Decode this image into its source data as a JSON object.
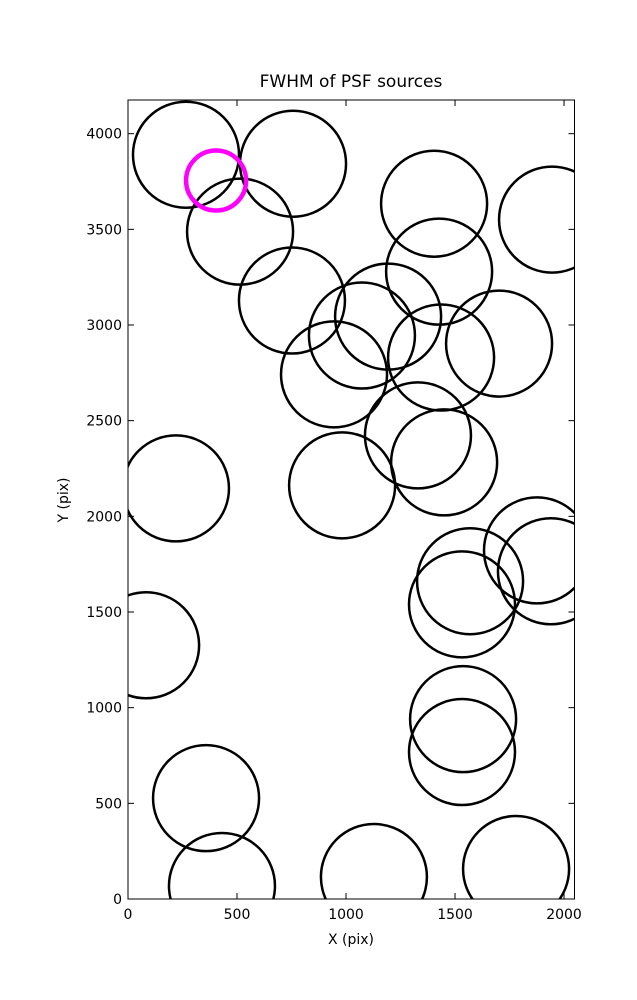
{
  "chart_data": {
    "type": "scatter",
    "title": "FWHM of PSF sources",
    "x_label": "X (pix)",
    "y_label": "Y (pix)",
    "xlim": [
      0,
      2048
    ],
    "ylim": [
      0,
      4176
    ],
    "xticks": [
      0,
      500,
      1000,
      1500,
      2000
    ],
    "yticks": [
      0,
      500,
      1000,
      1500,
      2000,
      2500,
      3000,
      3500,
      4000
    ],
    "series": [
      {
        "color": "#000000",
        "x": [
          266,
          757,
          514,
          1404,
          1945,
          1427,
          752,
          1193,
          1073,
          1436,
          1702,
          945,
          1330,
          1450,
          982,
          220,
          1876,
          1940,
          1569,
          1532,
          83,
          1537,
          1532,
          358,
          431,
          1128,
          1780
        ],
        "y": [
          3890,
          3843,
          3488,
          3634,
          3551,
          3279,
          3128,
          3044,
          2945,
          2830,
          2903,
          2742,
          2423,
          2282,
          2162,
          2146,
          1822,
          1713,
          1661,
          1540,
          1326,
          940,
          768,
          527,
          68,
          115,
          157
        ]
      },
      {
        "color": "#ff00ff",
        "x": [
          404
        ],
        "y": [
          3755
        ]
      }
    ]
  }
}
